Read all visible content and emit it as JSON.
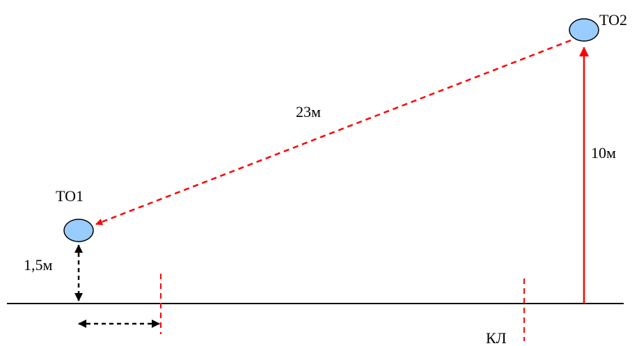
{
  "labels": {
    "to1": "ТО1",
    "to2": "ТО2",
    "distance_diag": "23м",
    "height_to2": "10м",
    "height_to1": "1,5м",
    "kl": "КЛ"
  },
  "colors": {
    "node_fill": "#99CCFF",
    "node_stroke": "#000000",
    "red": "#FF0000",
    "black": "#000000"
  }
}
